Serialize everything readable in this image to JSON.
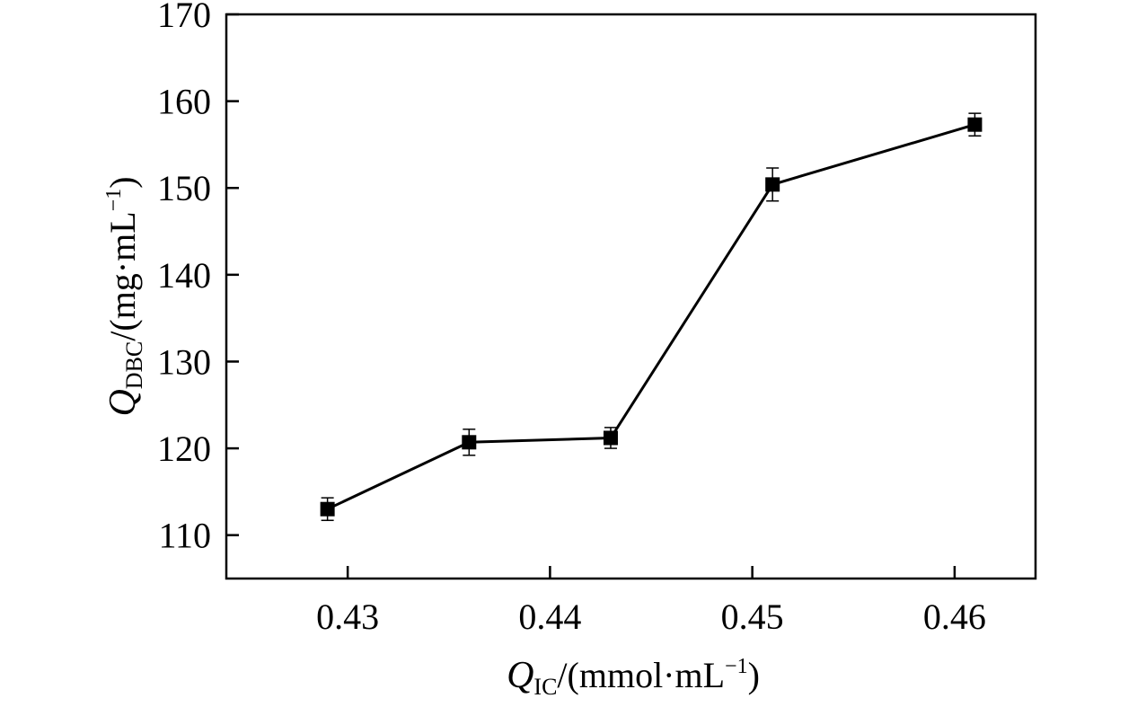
{
  "chart_data": {
    "type": "line",
    "x": [
      0.429,
      0.436,
      0.443,
      0.451,
      0.461
    ],
    "series": [
      {
        "values": [
          113.0,
          120.7,
          121.2,
          150.4,
          157.3
        ],
        "error": [
          1.3,
          1.5,
          1.2,
          1.9,
          1.3
        ]
      }
    ],
    "xlim": [
      0.424,
      0.464
    ],
    "ylim": [
      105,
      170
    ],
    "xticks": [
      0.43,
      0.44,
      0.45,
      0.46
    ],
    "xtick_labels": [
      "0.43",
      "0.44",
      "0.45",
      "0.46"
    ],
    "yticks": [
      110,
      120,
      130,
      140,
      150,
      160,
      170
    ],
    "ytick_labels": [
      "110",
      "120",
      "130",
      "140",
      "150",
      "160",
      "170"
    ],
    "xlabel": {
      "symbol": "Q",
      "subscript": "IC",
      "unit_open": "/(mmol·mL",
      "unit_exp": "−1",
      "unit_close": ")"
    },
    "ylabel": {
      "symbol": "Q",
      "subscript": "DBC",
      "unit_open": "/(mg·mL",
      "unit_exp": "−1",
      "unit_close": ")"
    },
    "marker": "square",
    "grid": false,
    "legend": "none",
    "colors": {
      "line": "#000000",
      "marker": "#000000",
      "axis": "#000000"
    }
  }
}
